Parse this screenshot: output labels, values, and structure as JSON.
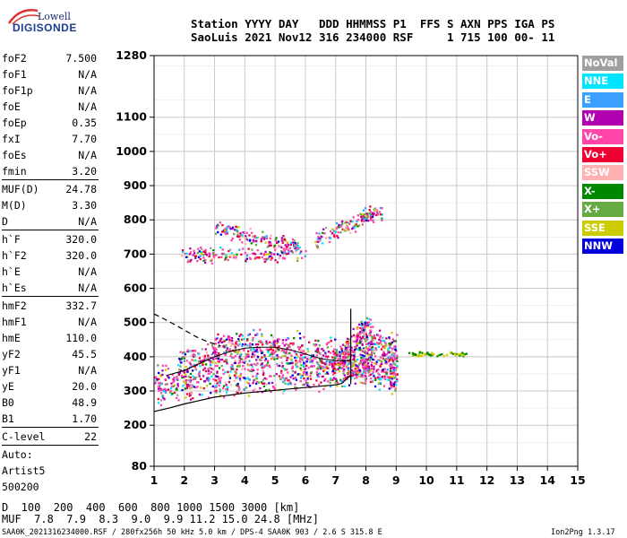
{
  "logo": {
    "line1": "Lowell",
    "line2": "DIGISONDE"
  },
  "header": {
    "labels": "Station YYYY DAY   DDD HHMMSS P1  FFS S AXN PPS IGA PS",
    "values": "SaoLuis 2021 Nov12 316 234000 RSF     1 715 100 00- 11"
  },
  "params": [
    {
      "name": "foF2",
      "value": "7.500"
    },
    {
      "name": "foF1",
      "value": "N/A"
    },
    {
      "name": "foF1p",
      "value": "N/A"
    },
    {
      "name": "foE",
      "value": "N/A"
    },
    {
      "name": "foEp",
      "value": "0.35"
    },
    {
      "name": "fxI",
      "value": "7.70"
    },
    {
      "name": "foEs",
      "value": "N/A"
    },
    {
      "name": "fmin",
      "value": "3.20"
    },
    {
      "sep": true
    },
    {
      "name": "MUF(D)",
      "value": "24.78"
    },
    {
      "name": "M(D)",
      "value": "3.30"
    },
    {
      "name": "D",
      "value": "N/A"
    },
    {
      "sep": true
    },
    {
      "name": "h`F",
      "value": "320.0"
    },
    {
      "name": "h`F2",
      "value": "320.0"
    },
    {
      "name": "h`E",
      "value": "N/A"
    },
    {
      "name": "h`Es",
      "value": "N/A"
    },
    {
      "sep": true
    },
    {
      "name": "hmF2",
      "value": "332.7"
    },
    {
      "name": "hmF1",
      "value": "N/A"
    },
    {
      "name": "hmE",
      "value": "110.0"
    },
    {
      "name": "yF2",
      "value": "45.5"
    },
    {
      "name": "yF1",
      "value": "N/A"
    },
    {
      "name": "yE",
      "value": "20.0"
    },
    {
      "name": "B0",
      "value": "48.9"
    },
    {
      "name": "B1",
      "value": "1.70"
    },
    {
      "sep": true
    },
    {
      "name": "C-level",
      "value": "22"
    },
    {
      "sep": true
    },
    {
      "name": "Auto:",
      "value": ""
    },
    {
      "name": "Artist5",
      "value": ""
    },
    {
      "name": "500200",
      "value": ""
    }
  ],
  "legend": [
    {
      "label": "NoVal",
      "color": "#a0a0a0"
    },
    {
      "label": "NNE",
      "color": "#00e5ff"
    },
    {
      "label": "E",
      "color": "#3aa0ff"
    },
    {
      "label": "W",
      "color": "#b000b0"
    },
    {
      "label": "Vo-",
      "color": "#ff44aa"
    },
    {
      "label": "Vo+",
      "color": "#ee0033"
    },
    {
      "label": "SSW",
      "color": "#ffb0b0"
    },
    {
      "label": "X-",
      "color": "#008800"
    },
    {
      "label": "X+",
      "color": "#66aa44"
    },
    {
      "label": "SSE",
      "color": "#cccc00"
    },
    {
      "label": "NNW",
      "color": "#0000dd"
    }
  ],
  "chart_data": {
    "type": "scatter",
    "xlabel": "",
    "ylabel": "",
    "xlim": [
      1,
      15
    ],
    "ylim": [
      80,
      1280
    ],
    "x_ticks": [
      "1",
      "2",
      "3",
      "4",
      "5",
      "6",
      "7",
      "8",
      "9",
      "10",
      "11",
      "12",
      "13",
      "14",
      "15"
    ],
    "y_ticks": [
      {
        "v": 80,
        "label": "80"
      },
      {
        "v": 200,
        "label": "200"
      },
      {
        "v": 300,
        "label": "300"
      },
      {
        "v": 400,
        "label": "400"
      },
      {
        "v": 500,
        "label": "500"
      },
      {
        "v": 600,
        "label": "600"
      },
      {
        "v": 700,
        "label": "700"
      },
      {
        "v": 800,
        "label": "800"
      },
      {
        "v": 900,
        "label": "900"
      },
      {
        "v": 1000,
        "label": "1000"
      },
      {
        "v": 1100,
        "label": "1100"
      },
      {
        "v": 1280,
        "label": "1280"
      }
    ],
    "grid": true,
    "traces": [
      {
        "name": "F-layer main trace",
        "x": [
          1.0,
          1.3,
          1.8,
          2.3,
          2.8,
          3.3,
          3.8,
          4.3,
          4.8,
          5.3,
          5.8,
          6.3,
          6.8,
          7.2,
          7.5,
          7.7,
          7.9,
          8.1,
          8.4,
          8.8,
          9.0
        ],
        "y": [
          320,
          322,
          325,
          330,
          335,
          338,
          340,
          344,
          348,
          352,
          355,
          358,
          360,
          362,
          365,
          370,
          380,
          378,
          360,
          350,
          348
        ]
      },
      {
        "name": "F-layer trace upper",
        "x": [
          1.8,
          2.3,
          2.8,
          3.3,
          3.8,
          4.3,
          4.8,
          5.3,
          5.8,
          6.3,
          6.8,
          7.2,
          7.6,
          7.9,
          8.2,
          8.6,
          9.0
        ],
        "y": [
          380,
          400,
          410,
          418,
          422,
          425,
          425,
          420,
          415,
          410,
          405,
          400,
          440,
          480,
          450,
          420,
          415
        ]
      },
      {
        "name": "tail cluster",
        "x": [
          9.3,
          9.6,
          10.0,
          10.3,
          10.6,
          11.0,
          11.3
        ],
        "y": [
          412,
          410,
          410,
          409,
          410,
          410,
          410
        ]
      },
      {
        "name": "multi-hop 2F",
        "x": [
          1.9,
          2.3,
          2.7,
          3.1,
          3.5,
          3.9,
          4.3,
          4.7,
          5.1,
          5.5,
          6.0
        ],
        "y": [
          700,
          705,
          700,
          700,
          702,
          705,
          700,
          698,
          700,
          700,
          702
        ]
      },
      {
        "name": "multi-hop 2F upper",
        "x": [
          3.0,
          3.4,
          3.8,
          4.2,
          4.6,
          5.0,
          5.4,
          5.8
        ],
        "y": [
          780,
          770,
          760,
          750,
          740,
          735,
          730,
          725
        ]
      },
      {
        "name": "oblique high",
        "x": [
          6.3,
          6.8,
          7.2,
          7.6,
          7.9,
          8.2,
          8.5
        ],
        "y": [
          740,
          760,
          780,
          790,
          810,
          820,
          825
        ]
      }
    ],
    "profile_solid": {
      "x": [
        1.0,
        1.5,
        2.0,
        2.5,
        3.0,
        3.5,
        4.0,
        4.5,
        5.0,
        5.5,
        6.0,
        6.5,
        7.0,
        7.2,
        7.3,
        7.4,
        7.5
      ],
      "y": [
        240,
        250,
        262,
        272,
        282,
        288,
        294,
        298,
        302,
        306,
        310,
        314,
        318,
        322,
        330,
        338,
        345
      ]
    },
    "profile_dashed": {
      "x": [
        1.0,
        1.3,
        1.6,
        2.0,
        2.4,
        2.8,
        3.2
      ],
      "y": [
        525,
        512,
        498,
        478,
        458,
        443,
        432
      ]
    },
    "profile_upper": {
      "x": [
        1.4,
        2.0,
        2.5,
        3.0,
        3.5,
        4.0,
        4.5,
        5.0,
        5.5,
        6.0,
        6.5,
        7.0,
        7.5
      ],
      "y": [
        345,
        360,
        380,
        400,
        415,
        425,
        428,
        428,
        420,
        408,
        395,
        388,
        390
      ]
    },
    "spike": {
      "x": 7.5,
      "y": [
        320,
        540
      ]
    }
  },
  "dmuf": {
    "d_label": "D",
    "d_values": "  100  200  400  600  800 1000 1500 3000 [km]",
    "muf_label": "MUF",
    "muf_values": "  7.8  7.9  8.3  9.0  9.9 11.2 15.0 24.8 [MHz]"
  },
  "footer": {
    "left": "SAA0K_2021316234000.RSF / 280fx256h 50 kHz 5.0 km / DPS-4 SAA0K 903 / 2.6 S 315.8 E",
    "right": "Ion2Png 1.3.17"
  }
}
